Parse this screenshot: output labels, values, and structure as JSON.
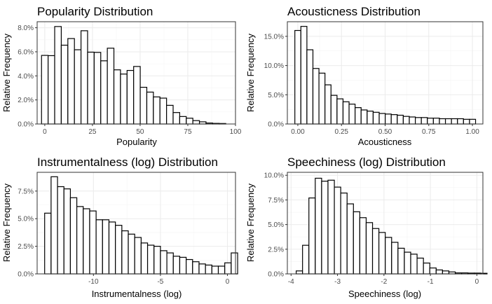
{
  "chart_data": [
    {
      "type": "bar",
      "title": "Popularity Distribution",
      "xlabel": "Popularity",
      "ylabel": "Relative Frequency",
      "xlim": [
        -4,
        100
      ],
      "ylim": [
        0,
        0.085
      ],
      "xticks": [
        0,
        25,
        50,
        75,
        100
      ],
      "xtick_labels": [
        "0",
        "25",
        "50",
        "75",
        "100"
      ],
      "yticks": [
        0,
        0.02,
        0.04,
        0.06,
        0.08
      ],
      "ytick_labels": [
        "0.0%",
        "2.0%",
        "4.0%",
        "6.0%",
        "8.0%"
      ],
      "bin_width": 3.45,
      "bin_start": -1.7,
      "values": [
        0.057,
        0.0568,
        0.081,
        0.0655,
        0.071,
        0.0617,
        0.0775,
        0.0597,
        0.0595,
        0.0525,
        0.063,
        0.045,
        0.0415,
        0.0445,
        0.0478,
        0.0305,
        0.0265,
        0.0225,
        0.0215,
        0.0155,
        0.0095,
        0.0062,
        0.0048,
        0.0028,
        0.0018,
        0.0008,
        0.0005,
        0.0004
      ],
      "grid": true
    },
    {
      "type": "bar",
      "title": "Acousticness Distribution",
      "xlabel": "Acousticness",
      "ylabel": "Relative Frequency",
      "xlim": [
        -0.06,
        1.06
      ],
      "ylim": [
        0,
        0.175
      ],
      "xticks": [
        0,
        0.25,
        0.5,
        0.75,
        1.0
      ],
      "xtick_labels": [
        "0.00",
        "0.25",
        "0.50",
        "0.75",
        "1.00"
      ],
      "yticks": [
        0,
        0.05,
        0.1,
        0.15
      ],
      "ytick_labels": [
        "0.0%",
        "5.0%",
        "10.0%",
        "15.0%"
      ],
      "bin_width": 0.0345,
      "bin_start": -0.017,
      "values": [
        0.16,
        0.167,
        0.127,
        0.095,
        0.087,
        0.067,
        0.049,
        0.043,
        0.038,
        0.034,
        0.028,
        0.024,
        0.022,
        0.02,
        0.018,
        0.017,
        0.016,
        0.015,
        0.013,
        0.012,
        0.011,
        0.011,
        0.01,
        0.01,
        0.009,
        0.009,
        0.009,
        0.009,
        0.008,
        0.008
      ],
      "grid": true
    },
    {
      "type": "bar",
      "title": "Instrumentalness (log) Distribution",
      "xlabel": "Instrumentalness (log)",
      "ylabel": "Relative Frequency",
      "xlim": [
        -14.2,
        0.6
      ],
      "ylim": [
        0,
        0.092
      ],
      "xticks": [
        -10,
        -5,
        0
      ],
      "xtick_labels": [
        "-10",
        "-5",
        "0"
      ],
      "yticks": [
        0,
        0.025,
        0.05,
        0.075
      ],
      "ytick_labels": [
        "0.0%",
        "2.5%",
        "5.0%",
        "7.5%"
      ],
      "bin_width": 0.48,
      "bin_start": -13.64,
      "values": [
        0.055,
        0.088,
        0.079,
        0.077,
        0.069,
        0.061,
        0.059,
        0.057,
        0.049,
        0.049,
        0.047,
        0.044,
        0.039,
        0.036,
        0.033,
        0.028,
        0.026,
        0.025,
        0.021,
        0.019,
        0.016,
        0.015,
        0.013,
        0.011,
        0.009,
        0.008,
        0.007,
        0.007,
        0.01,
        0.019
      ],
      "grid": true
    },
    {
      "type": "bar",
      "title": "Speechiness (log) Distribution",
      "xlabel": "Speechiness (log)",
      "ylabel": "Relative Frequency",
      "xlim": [
        -4.08,
        0.13
      ],
      "ylim": [
        0,
        0.103
      ],
      "xticks": [
        -4,
        -3,
        -2,
        -1,
        0
      ],
      "xtick_labels": [
        "-4",
        "-3",
        "-2",
        "-1",
        "0"
      ],
      "yticks": [
        0,
        0.025,
        0.05,
        0.075,
        0.1
      ],
      "ytick_labels": [
        "0.0%",
        "2.5%",
        "5.0%",
        "7.5%",
        "10.0%"
      ],
      "bin_width": 0.137,
      "bin_start": -3.89,
      "values": [
        0.003,
        0.029,
        0.077,
        0.097,
        0.094,
        0.095,
        0.088,
        0.082,
        0.071,
        0.063,
        0.057,
        0.052,
        0.046,
        0.042,
        0.037,
        0.032,
        0.026,
        0.022,
        0.02,
        0.016,
        0.011,
        0.006,
        0.004,
        0.003,
        0.002,
        0.001,
        0.001,
        0.0008,
        0.0008,
        0.0006
      ],
      "grid": true
    }
  ]
}
